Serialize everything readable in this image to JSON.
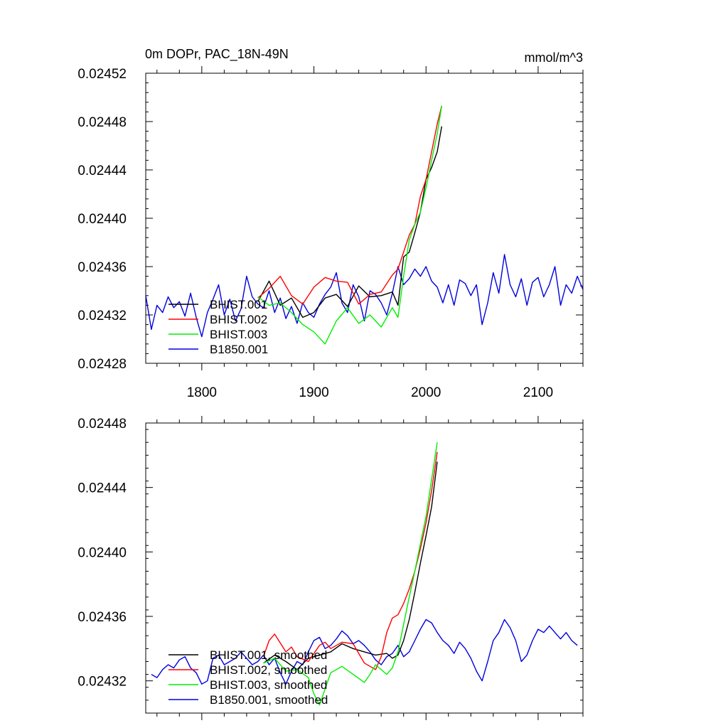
{
  "chart_data": [
    {
      "type": "line",
      "title": "0m DOPr, PAC_18N-49N",
      "units": "mmol/m^3",
      "xlim": [
        1750,
        2140
      ],
      "ylim": [
        0.02428,
        0.02452
      ],
      "x_ticks": [
        "1800",
        "1900",
        "2000",
        "2100"
      ],
      "y_ticks": [
        "0.02428",
        "0.02432",
        "0.02436",
        "0.02440",
        "0.02444",
        "0.02448",
        "0.02452"
      ],
      "legend_position": "bottom-left",
      "series": [
        {
          "name": "BHIST.001",
          "color": "#000000",
          "x": [
            1850,
            1860,
            1870,
            1880,
            1890,
            1900,
            1910,
            1920,
            1930,
            1940,
            1950,
            1960,
            1970,
            1975,
            1980,
            1985,
            1990,
            1995,
            2000,
            2005,
            2010,
            2014
          ],
          "y": [
            0.024331,
            0.024348,
            0.024328,
            0.024334,
            0.024318,
            0.024322,
            0.024334,
            0.024337,
            0.024327,
            0.024344,
            0.024335,
            0.024336,
            0.024339,
            0.024328,
            0.024368,
            0.024372,
            0.024388,
            0.024405,
            0.024432,
            0.024442,
            0.024455,
            0.024476
          ]
        },
        {
          "name": "BHIST.002",
          "color": "#ff0000",
          "x": [
            1850,
            1860,
            1870,
            1880,
            1890,
            1900,
            1910,
            1920,
            1930,
            1940,
            1950,
            1960,
            1970,
            1975,
            1980,
            1985,
            1990,
            1995,
            2000,
            2005,
            2010,
            2014
          ],
          "y": [
            0.024334,
            0.024342,
            0.024352,
            0.024336,
            0.024329,
            0.024343,
            0.024351,
            0.024348,
            0.024347,
            0.024329,
            0.024337,
            0.024339,
            0.024353,
            0.024358,
            0.024372,
            0.024386,
            0.024395,
            0.024418,
            0.024432,
            0.024455,
            0.024478,
            0.024493
          ]
        },
        {
          "name": "BHIST.003",
          "color": "#00ee00",
          "x": [
            1850,
            1860,
            1870,
            1880,
            1890,
            1900,
            1910,
            1920,
            1930,
            1940,
            1950,
            1960,
            1970,
            1975,
            1980,
            1985,
            1990,
            1995,
            2000,
            2005,
            2010,
            2014
          ],
          "y": [
            0.024335,
            0.024328,
            0.02433,
            0.024322,
            0.024312,
            0.024306,
            0.024296,
            0.024315,
            0.024326,
            0.024313,
            0.02432,
            0.02431,
            0.024326,
            0.024318,
            0.024352,
            0.024382,
            0.024395,
            0.024405,
            0.024425,
            0.024448,
            0.02447,
            0.024493
          ]
        },
        {
          "name": "B1850.001",
          "color": "#0000dd",
          "x": [
            1750,
            1755,
            1760,
            1765,
            1770,
            1775,
            1780,
            1785,
            1790,
            1795,
            1800,
            1805,
            1810,
            1815,
            1820,
            1825,
            1830,
            1835,
            1840,
            1845,
            1850,
            1855,
            1860,
            1865,
            1870,
            1875,
            1880,
            1885,
            1890,
            1895,
            1900,
            1905,
            1910,
            1915,
            1920,
            1925,
            1930,
            1935,
            1940,
            1945,
            1950,
            1955,
            1960,
            1965,
            1970,
            1975,
            1980,
            1985,
            1990,
            1995,
            2000,
            2005,
            2010,
            2015,
            2020,
            2025,
            2030,
            2035,
            2040,
            2045,
            2050,
            2055,
            2060,
            2065,
            2070,
            2075,
            2080,
            2085,
            2090,
            2095,
            2100,
            2105,
            2110,
            2115,
            2120,
            2125,
            2130,
            2135,
            2140
          ],
          "y": [
            0.024336,
            0.024308,
            0.024328,
            0.024322,
            0.024335,
            0.024326,
            0.024331,
            0.024319,
            0.024338,
            0.024318,
            0.024302,
            0.024322,
            0.024333,
            0.024345,
            0.02432,
            0.024333,
            0.024315,
            0.024325,
            0.024352,
            0.024335,
            0.024329,
            0.024326,
            0.02434,
            0.024322,
            0.024334,
            0.024317,
            0.024327,
            0.024313,
            0.02433,
            0.024322,
            0.024318,
            0.024329,
            0.024337,
            0.024343,
            0.024355,
            0.02433,
            0.024322,
            0.024345,
            0.024335,
            0.024315,
            0.02434,
            0.024337,
            0.02433,
            0.02432,
            0.024338,
            0.02436,
            0.024345,
            0.02435,
            0.024358,
            0.024352,
            0.02436,
            0.024348,
            0.024343,
            0.02433,
            0.024345,
            0.024328,
            0.024349,
            0.024346,
            0.024336,
            0.024345,
            0.024312,
            0.02433,
            0.024355,
            0.024338,
            0.02437,
            0.024345,
            0.024335,
            0.02435,
            0.024328,
            0.024347,
            0.024351,
            0.024335,
            0.024345,
            0.02436,
            0.024328,
            0.024345,
            0.024338,
            0.024352,
            0.024341
          ]
        }
      ]
    },
    {
      "type": "line",
      "title": "",
      "xlim": [
        1750,
        2140
      ],
      "ylim": [
        0.0243,
        0.02448
      ],
      "x_ticks": [],
      "y_ticks": [
        "0.02432",
        "0.02436",
        "0.02440",
        "0.02444",
        "0.02448"
      ],
      "legend_position": "bottom-left",
      "series": [
        {
          "name": "BHIST.001, smoothed",
          "color": "#000000",
          "x": [
            1855,
            1865,
            1875,
            1885,
            1895,
            1905,
            1915,
            1925,
            1935,
            1945,
            1955,
            1965,
            1970,
            1975,
            1980,
            1985,
            1990,
            1995,
            2000,
            2005,
            2010
          ],
          "y": [
            0.024331,
            0.024336,
            0.024332,
            0.024327,
            0.024334,
            0.024336,
            0.024338,
            0.024343,
            0.02434,
            0.024338,
            0.024336,
            0.024337,
            0.024334,
            0.024336,
            0.024345,
            0.024358,
            0.024375,
            0.024393,
            0.02441,
            0.024428,
            0.024456
          ]
        },
        {
          "name": "BHIST.002, smoothed",
          "color": "#ff0000",
          "x": [
            1855,
            1860,
            1865,
            1875,
            1880,
            1885,
            1895,
            1905,
            1910,
            1915,
            1925,
            1935,
            1945,
            1955,
            1960,
            1965,
            1970,
            1975,
            1980,
            1985,
            1990,
            1995,
            2000,
            2005,
            2010
          ],
          "y": [
            0.024335,
            0.024345,
            0.024349,
            0.024338,
            0.024341,
            0.024335,
            0.024332,
            0.024342,
            0.024344,
            0.02434,
            0.024344,
            0.024343,
            0.024331,
            0.024327,
            0.024335,
            0.02435,
            0.024359,
            0.024361,
            0.024368,
            0.024377,
            0.024388,
            0.024402,
            0.024418,
            0.024438,
            0.024462
          ]
        },
        {
          "name": "BHIST.003, smoothed",
          "color": "#00ee00",
          "x": [
            1855,
            1865,
            1875,
            1885,
            1895,
            1900,
            1905,
            1910,
            1915,
            1925,
            1935,
            1945,
            1950,
            1955,
            1965,
            1970,
            1975,
            1980,
            1985,
            1990,
            1995,
            2000,
            2005,
            2010
          ],
          "y": [
            0.024331,
            0.024334,
            0.024326,
            0.024327,
            0.024322,
            0.024312,
            0.024305,
            0.024315,
            0.024325,
            0.024329,
            0.024324,
            0.024319,
            0.024324,
            0.02433,
            0.024324,
            0.024328,
            0.024338,
            0.024355,
            0.024372,
            0.024388,
            0.024405,
            0.024422,
            0.024445,
            0.024468
          ]
        },
        {
          "name": "B1850.001, smoothed",
          "color": "#0000dd",
          "x": [
            1755,
            1760,
            1765,
            1770,
            1775,
            1780,
            1785,
            1790,
            1795,
            1800,
            1805,
            1810,
            1815,
            1820,
            1825,
            1830,
            1835,
            1840,
            1845,
            1850,
            1855,
            1860,
            1865,
            1870,
            1875,
            1880,
            1885,
            1890,
            1895,
            1900,
            1905,
            1910,
            1915,
            1920,
            1925,
            1930,
            1935,
            1940,
            1945,
            1950,
            1955,
            1960,
            1965,
            1970,
            1975,
            1980,
            1985,
            1990,
            1995,
            2000,
            2005,
            2010,
            2015,
            2020,
            2025,
            2030,
            2035,
            2040,
            2045,
            2050,
            2055,
            2060,
            2065,
            2070,
            2075,
            2080,
            2085,
            2090,
            2095,
            2100,
            2105,
            2110,
            2115,
            2120,
            2125,
            2130,
            2135
          ],
          "y": [
            0.024324,
            0.024322,
            0.024327,
            0.02433,
            0.024328,
            0.024333,
            0.024335,
            0.024328,
            0.024325,
            0.024318,
            0.02432,
            0.024334,
            0.024336,
            0.02433,
            0.024332,
            0.024334,
            0.024338,
            0.024334,
            0.02433,
            0.024332,
            0.024336,
            0.02433,
            0.024334,
            0.024325,
            0.024318,
            0.024326,
            0.024332,
            0.02433,
            0.024338,
            0.024345,
            0.024347,
            0.02434,
            0.024342,
            0.024346,
            0.024351,
            0.024348,
            0.024343,
            0.024345,
            0.024342,
            0.024338,
            0.024333,
            0.02433,
            0.024335,
            0.024337,
            0.024342,
            0.024335,
            0.024338,
            0.024345,
            0.024352,
            0.024358,
            0.024356,
            0.02435,
            0.024345,
            0.024342,
            0.024337,
            0.024344,
            0.02434,
            0.024334,
            0.024326,
            0.02432,
            0.024332,
            0.024345,
            0.02435,
            0.024358,
            0.024353,
            0.024345,
            0.024332,
            0.024336,
            0.024345,
            0.024352,
            0.02435,
            0.024354,
            0.02435,
            0.024346,
            0.02435,
            0.024345,
            0.024342
          ]
        }
      ]
    }
  ]
}
